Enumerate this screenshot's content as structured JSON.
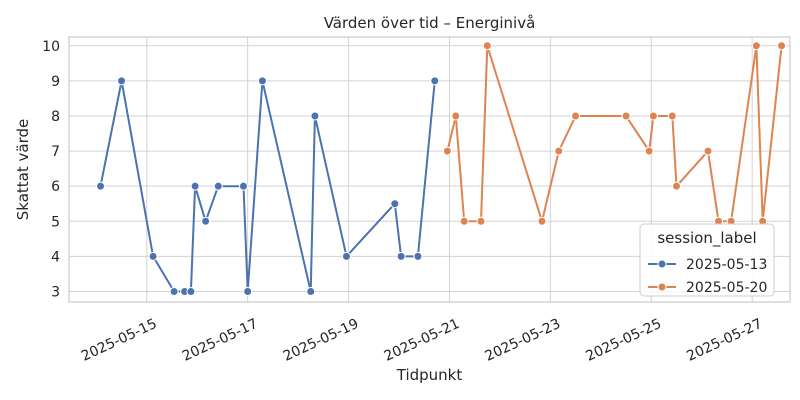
{
  "chart_data": {
    "type": "line",
    "title": "Värden över tid – Energinivå",
    "xlabel": "Tidpunkt",
    "ylabel": "Skattat värde",
    "x_ticks": [
      "2025-05-15",
      "2025-05-17",
      "2025-05-19",
      "2025-05-21",
      "2025-05-23",
      "2025-05-25",
      "2025-05-27"
    ],
    "y_ticks": [
      3,
      4,
      5,
      6,
      7,
      8,
      9,
      10
    ],
    "xlim": [
      "2025-05-13 11:00",
      "2025-05-27 18:00"
    ],
    "ylim": [
      2.7,
      10.25
    ],
    "grid": true,
    "legend": {
      "title": "session_label",
      "placement": "lower-right"
    },
    "series": [
      {
        "name": "2025-05-13",
        "color": "#4c72b0",
        "points": [
          [
            "2025-05-14 02:00",
            6
          ],
          [
            "2025-05-14 12:00",
            9
          ],
          [
            "2025-05-15 03:00",
            4
          ],
          [
            "2025-05-15 13:00",
            3
          ],
          [
            "2025-05-15 18:00",
            3
          ],
          [
            "2025-05-15 21:00",
            3
          ],
          [
            "2025-05-15 23:00",
            6
          ],
          [
            "2025-05-16 04:00",
            5
          ],
          [
            "2025-05-16 10:00",
            6
          ],
          [
            "2025-05-16 22:00",
            6
          ],
          [
            "2025-05-17 00:00",
            3
          ],
          [
            "2025-05-17 07:00",
            9
          ],
          [
            "2025-05-18 06:00",
            3
          ],
          [
            "2025-05-18 08:00",
            8
          ],
          [
            "2025-05-18 23:00",
            4
          ],
          [
            "2025-05-19 22:00",
            5.5
          ],
          [
            "2025-05-20 01:00",
            4
          ],
          [
            "2025-05-20 09:00",
            4
          ],
          [
            "2025-05-20 17:00",
            9
          ]
        ]
      },
      {
        "name": "2025-05-20",
        "color": "#dd8452",
        "points": [
          [
            "2025-05-20 23:00",
            7
          ],
          [
            "2025-05-21 03:00",
            8
          ],
          [
            "2025-05-21 07:00",
            5
          ],
          [
            "2025-05-21 15:00",
            5
          ],
          [
            "2025-05-21 18:00",
            10
          ],
          [
            "2025-05-22 20:00",
            5
          ],
          [
            "2025-05-23 04:00",
            7
          ],
          [
            "2025-05-23 12:00",
            8
          ],
          [
            "2025-05-24 12:00",
            8
          ],
          [
            "2025-05-24 23:00",
            7
          ],
          [
            "2025-05-25 01:00",
            8
          ],
          [
            "2025-05-25 10:00",
            8
          ],
          [
            "2025-05-25 12:00",
            6
          ],
          [
            "2025-05-26 03:00",
            7
          ],
          [
            "2025-05-26 08:00",
            5
          ],
          [
            "2025-05-26 14:00",
            5
          ],
          [
            "2025-05-27 02:00",
            10
          ],
          [
            "2025-05-27 05:00",
            5
          ],
          [
            "2025-05-27 14:00",
            10
          ]
        ]
      }
    ]
  }
}
